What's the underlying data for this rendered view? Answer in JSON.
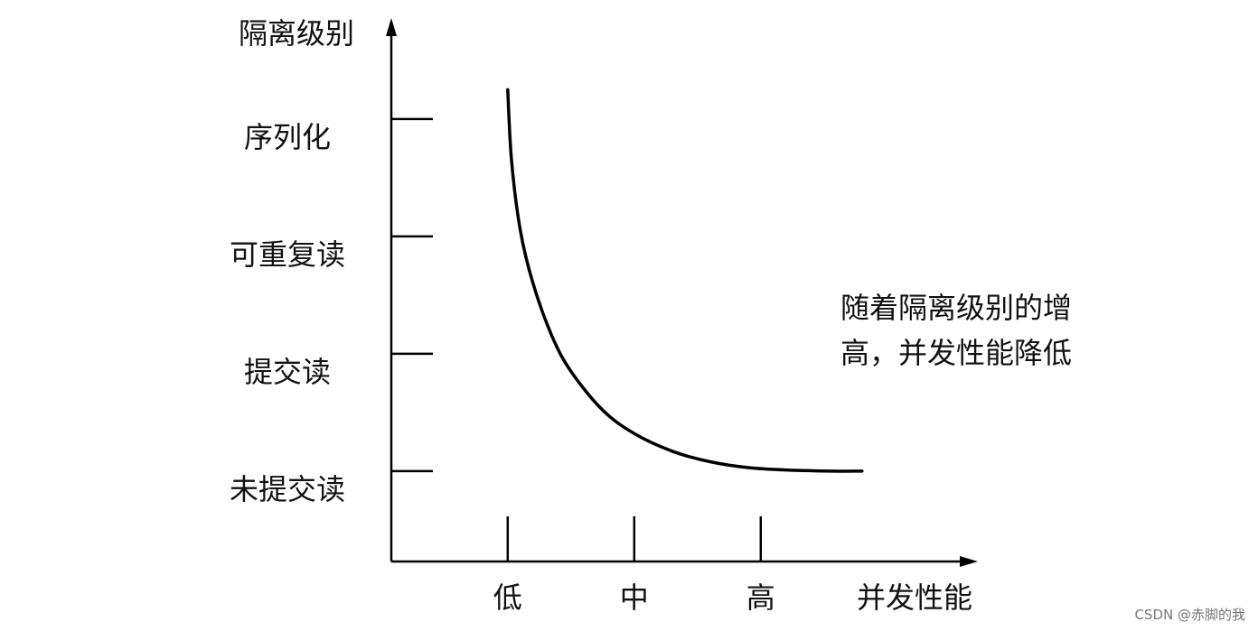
{
  "chart_data": {
    "type": "line",
    "ylabel": "隔离级别",
    "xlabel": "并发性能",
    "y_categories": [
      "未提交读",
      "提交读",
      "可重复读",
      "序列化"
    ],
    "x_categories": [
      "低",
      "中",
      "高"
    ],
    "series": [
      {
        "x": [
          0.0,
          0.03,
          0.1,
          0.2,
          0.35,
          0.5,
          0.75,
          1.0,
          1.3,
          1.6,
          1.9,
          2.2,
          2.55,
          2.8
        ],
        "y": [
          3.25,
          2.65,
          2.05,
          1.6,
          1.15,
          0.85,
          0.52,
          0.32,
          0.17,
          0.08,
          0.03,
          0.01,
          0.0,
          0.0
        ]
      }
    ],
    "annotation": [
      "随着隔离级别的增",
      "高，并发性能降低"
    ],
    "xlim": [
      -0.92,
      3.7
    ],
    "ylim": [
      -0.77,
      3.8
    ],
    "grid": false,
    "legend": "none",
    "colors": {
      "line": "#000000",
      "axis": "#000000",
      "text": "#111111"
    }
  },
  "watermark": "CSDN @赤脚的我"
}
